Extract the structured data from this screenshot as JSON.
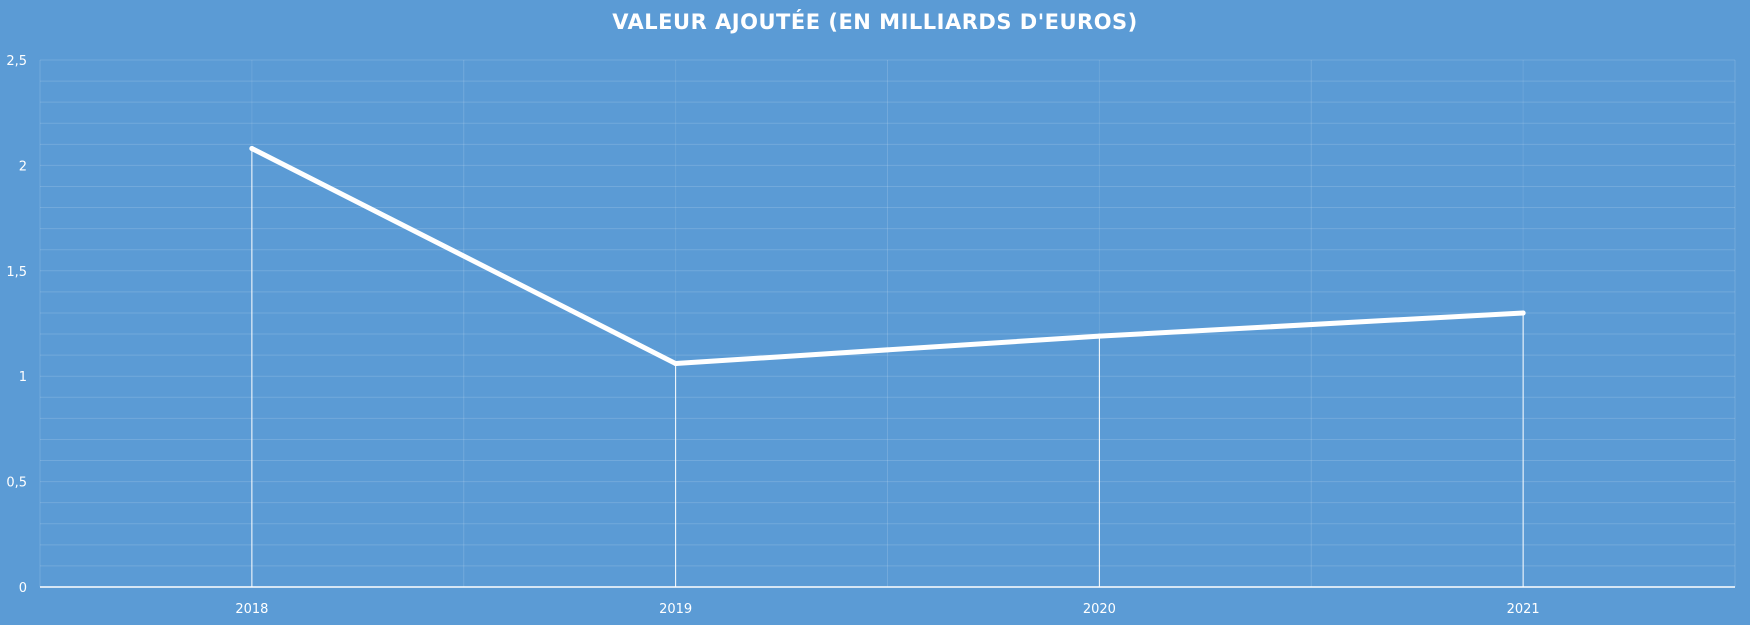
{
  "chart_data": {
    "type": "line",
    "title": "VALEUR AJOUTÉE (EN MILLIARDS D'EUROS)",
    "categories": [
      "2018",
      "2019",
      "2020",
      "2021"
    ],
    "series": [
      {
        "values": [
          2.08,
          1.06,
          1.19,
          1.3
        ]
      }
    ],
    "ylim": [
      0,
      2.5
    ],
    "ytick_labels": [
      "0",
      "0,5",
      "1",
      "1,5",
      "2",
      "2,5"
    ],
    "grid": true,
    "legend": "none",
    "drop_lines": true,
    "colors": {
      "background": "#5b9bd5",
      "line": "#ffffff",
      "text": "#ffffff"
    }
  }
}
